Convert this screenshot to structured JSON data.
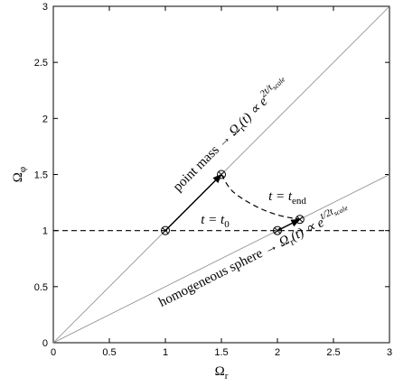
{
  "chart_data": {
    "type": "line",
    "xlabel": [
      {
        "text": "Ω"
      },
      {
        "text": "r",
        "style": "sub"
      }
    ],
    "ylabel": [
      {
        "text": "Ω"
      },
      {
        "text": "φ",
        "style": "sub"
      }
    ],
    "xlim": [
      0,
      3
    ],
    "ylim": [
      0,
      3
    ],
    "xticks": [
      0,
      0.5,
      1,
      1.5,
      2,
      2.5,
      3
    ],
    "yticks": [
      0,
      0.5,
      1,
      1.5,
      2,
      2.5,
      3
    ],
    "grid": false,
    "series": [
      {
        "color": "#888888",
        "x": [
          0,
          3
        ],
        "values": [
          0,
          3
        ]
      },
      {
        "color": "#888888",
        "x": [
          0,
          3
        ],
        "values": [
          0,
          1.5
        ]
      },
      {
        "color": "#000000",
        "dash": true,
        "x": [
          0,
          3
        ],
        "values": [
          1,
          1
        ]
      },
      {
        "color": "#000000",
        "arrow": true,
        "x": [
          1,
          1.5
        ],
        "values": [
          1,
          1.5
        ]
      },
      {
        "color": "#000000",
        "arrow": true,
        "x": [
          2,
          2.2
        ],
        "values": [
          1,
          1.1
        ]
      },
      {
        "color": "#000000",
        "dash": true,
        "smooth": true,
        "x": [
          1.5,
          1.6,
          1.8,
          2.0,
          2.2
        ],
        "values": [
          1.5,
          1.35,
          1.22,
          1.14,
          1.1
        ]
      },
      {
        "color": "#000000",
        "marker": "circle-x",
        "x": [
          1,
          1.5,
          2,
          2.2
        ],
        "values": [
          1,
          1.5,
          1,
          1.1
        ]
      }
    ],
    "annotations": [
      [
        {
          "text": "point mass → "
        },
        {
          "text": "Ω",
          "style": "it"
        },
        {
          "text": "r",
          "style": "sub"
        },
        {
          "text": "(t) ∝ e",
          "style": "it"
        },
        {
          "text": "2t/t",
          "style": "sup"
        },
        {
          "text": "scale",
          "style": "supsub"
        }
      ],
      [
        {
          "text": "homogeneous sphere → "
        },
        {
          "text": "Ω",
          "style": "it"
        },
        {
          "text": "r",
          "style": "sub"
        },
        {
          "text": "(t) ∝ e",
          "style": "it"
        },
        {
          "text": "t/2t",
          "style": "sup"
        },
        {
          "text": "scale",
          "style": "supsub"
        }
      ],
      [
        {
          "text": "t = t",
          "style": "it"
        },
        {
          "text": "0",
          "style": "sub"
        }
      ],
      [
        {
          "text": "t = t",
          "style": "it"
        },
        {
          "text": "end",
          "style": "sub"
        }
      ]
    ]
  }
}
